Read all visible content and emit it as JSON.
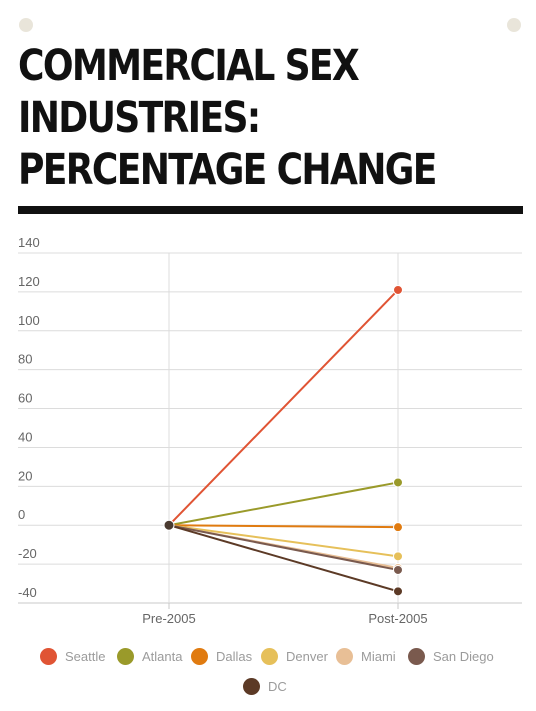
{
  "title_lines": [
    "COMMERCIAL SEX",
    "INDUSTRIES:",
    "PERCENTAGE CHANGE"
  ],
  "chart_data": {
    "type": "line",
    "categories": [
      "Pre-2005",
      "Post-2005"
    ],
    "yticks": [
      140,
      120,
      100,
      80,
      60,
      40,
      20,
      0,
      -20,
      -40
    ],
    "ylim": [
      -40,
      140
    ],
    "grid": true,
    "legend_position": "bottom",
    "series": [
      {
        "name": "Seattle",
        "color": "#e05434",
        "values": [
          0,
          121
        ]
      },
      {
        "name": "Atlanta",
        "color": "#9a9a2a",
        "values": [
          0,
          22
        ]
      },
      {
        "name": "Dallas",
        "color": "#e07b10",
        "values": [
          0,
          -1
        ]
      },
      {
        "name": "Denver",
        "color": "#e6c05a",
        "values": [
          0,
          -16
        ]
      },
      {
        "name": "Miami",
        "color": "#e8bf96",
        "values": [
          0,
          -22
        ]
      },
      {
        "name": "San Diego",
        "color": "#7a5a4e",
        "values": [
          0,
          -23
        ]
      },
      {
        "name": "DC",
        "color": "#5c3a26",
        "values": [
          0,
          -34
        ]
      }
    ]
  }
}
